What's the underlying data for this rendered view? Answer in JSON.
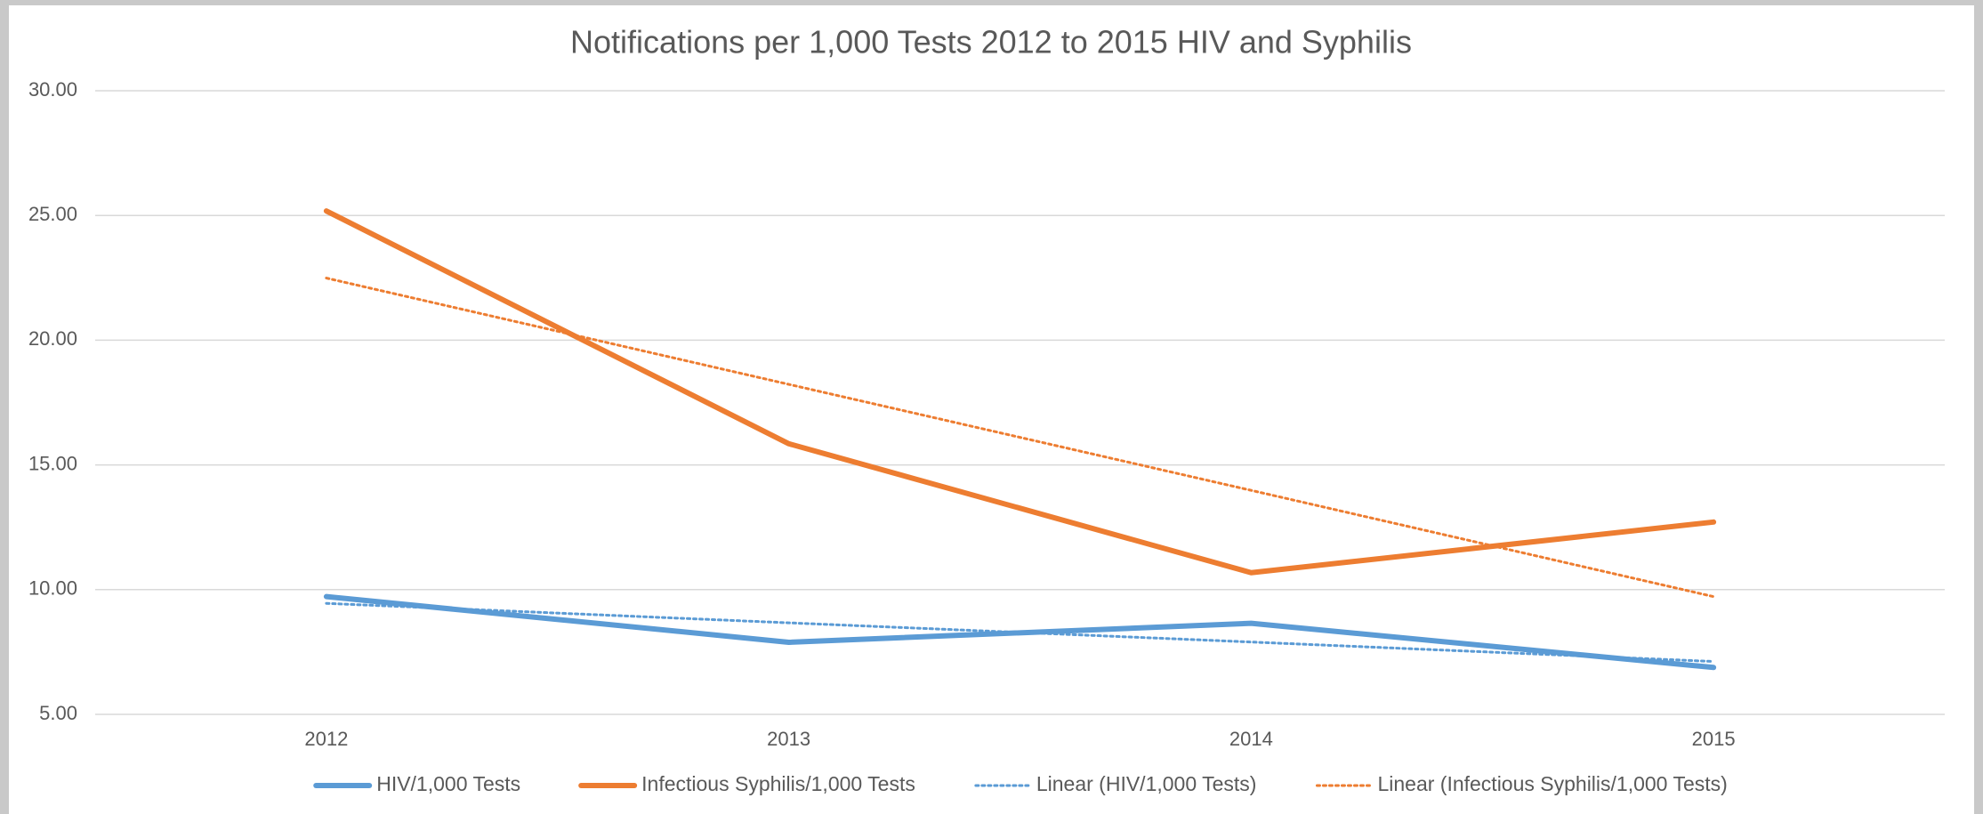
{
  "chart_data": {
    "type": "line",
    "title": "Notifications per 1,000 Tests 2012 to 2015 HIV and Syphilis",
    "categories": [
      "2012",
      "2013",
      "2014",
      "2015"
    ],
    "series": [
      {
        "name": "HIV/1,000 Tests",
        "color": "#5b9bd5",
        "style": "solid",
        "values": [
          9.72,
          7.89,
          8.65,
          6.88
        ]
      },
      {
        "name": "Infectious Syphilis/1,000 Tests",
        "color": "#ed7d31",
        "style": "solid",
        "values": [
          25.18,
          15.85,
          10.68,
          12.71
        ]
      },
      {
        "name": "Linear (HIV/1,000 Tests)",
        "color": "#5b9bd5",
        "style": "dotted",
        "values": [
          9.45,
          8.67,
          7.9,
          7.12
        ]
      },
      {
        "name": "Linear (Infectious Syphilis/1,000 Tests)",
        "color": "#ed7d31",
        "style": "dotted",
        "values": [
          22.49,
          18.23,
          13.98,
          9.72
        ]
      }
    ],
    "ylim": [
      5,
      30
    ],
    "yticks": [
      {
        "value": 5,
        "label": "5.00"
      },
      {
        "value": 10,
        "label": "10.00"
      },
      {
        "value": 15,
        "label": "15.00"
      },
      {
        "value": 20,
        "label": "20.00"
      },
      {
        "value": 25,
        "label": "25.00"
      },
      {
        "value": 30,
        "label": "30.00"
      }
    ],
    "grid": true,
    "legend": "bottom"
  }
}
